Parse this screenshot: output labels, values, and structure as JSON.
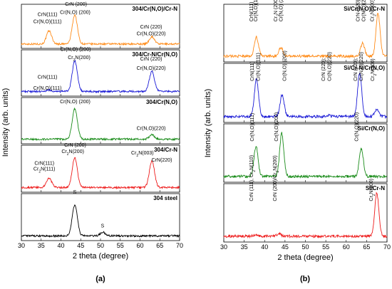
{
  "figure": {
    "captions": [
      "(a)",
      "(b)"
    ]
  },
  "chart_data": [
    {
      "type": "line",
      "xlabel": "2 theta (degree)",
      "ylabel": "Intensity (arb. units)",
      "xlim": [
        30,
        70
      ],
      "xticks": [
        30,
        35,
        40,
        45,
        50,
        55,
        60,
        65,
        70
      ],
      "panels": [
        {
          "title": "304/Cr(N,O)/Cr-N",
          "color": "#ff8c1a",
          "peaks": [
            [
              37.0,
              0.45
            ],
            [
              43.5,
              1.0
            ],
            [
              63.0,
              0.25
            ]
          ],
          "annotations": [
            {
              "text": "CrN (200)",
              "x": 43.8,
              "level": 0.97
            },
            {
              "text": "Cr(N,O) (200)",
              "x": 43.6,
              "level": 0.78
            },
            {
              "text": "CrN(111)",
              "x": 36.6,
              "level": 0.73
            },
            {
              "text": "Cr(N,O)(111)",
              "x": 36.6,
              "level": 0.57
            },
            {
              "text": "CrN (220)",
              "x": 62.8,
              "level": 0.45
            },
            {
              "text": "Cr(N,O)(220)",
              "x": 62.8,
              "level": 0.3
            }
          ]
        },
        {
          "title": "304/Cr-N/Cr(N,O)",
          "color": "#1a1ad6",
          "peaks": [
            [
              37.0,
              0.05
            ],
            [
              43.5,
              1.0
            ],
            [
              63.0,
              0.65
            ]
          ],
          "annotations": [
            {
              "text": "Cr(N,O) (200)",
              "x": 43.7,
              "level": 0.98
            },
            {
              "text": "Cr2N(200)",
              "x": 44.6,
              "level": 0.8
            },
            {
              "text": "CrN(111)",
              "x": 36.6,
              "level": 0.38
            },
            {
              "text": "Cr(N,O)(111)",
              "x": 36.6,
              "level": 0.14
            },
            {
              "text": "CrN (220)",
              "x": 62.8,
              "level": 0.77
            },
            {
              "text": "Cr(N,O)(220)",
              "x": 62.8,
              "level": 0.57
            }
          ]
        },
        {
          "title": "304/Cr(N,O)",
          "color": "#1a8c1a",
          "peaks": [
            [
              43.5,
              1.0
            ],
            [
              63.0,
              0.15
            ]
          ],
          "annotations": [
            {
              "text": "Cr(N,O) (200)",
              "x": 43.6,
              "level": 0.88
            },
            {
              "text": "Cr(N,O)(220)",
              "x": 62.8,
              "level": 0.3
            }
          ]
        },
        {
          "title": "304/Cr-N",
          "color": "#ee1c1c",
          "peaks": [
            [
              37.0,
              0.3
            ],
            [
              43.5,
              0.95
            ],
            [
              63.0,
              0.85
            ]
          ],
          "annotations": [
            {
              "text": "CrN (200)",
              "x": 43.6,
              "level": 0.97
            },
            {
              "text": "Cr2N(200)",
              "x": 43.0,
              "level": 0.83
            },
            {
              "text": "CrN(111)",
              "x": 35.8,
              "level": 0.58
            },
            {
              "text": "Cr2N(111)",
              "x": 35.8,
              "level": 0.46
            },
            {
              "text": "Cr2N(003)",
              "x": 60.6,
              "level": 0.8
            },
            {
              "text": "CrN(220)",
              "x": 65.5,
              "level": 0.65
            }
          ]
        },
        {
          "title": "304 steel",
          "color": "#000000",
          "peaks": [
            [
              43.5,
              1.0
            ],
            [
              50.6,
              0.12
            ]
          ],
          "annotations": [
            {
              "text": "S",
              "x": 43.5,
              "level": 1.0
            },
            {
              "text": "S",
              "x": 50.5,
              "level": 0.28
            }
          ]
        }
      ]
    },
    {
      "type": "line",
      "xlabel": "2 theta (degree)",
      "ylabel": "Intensity (arb. units)",
      "xlim": [
        30,
        70
      ],
      "xticks": [
        30,
        35,
        40,
        45,
        50,
        55,
        60,
        65,
        70
      ],
      "panels": [
        {
          "title": "Si/Cr(N,O)/Cr-N",
          "color": "#ff8c1a",
          "peaks": [
            [
              38.0,
              0.45
            ],
            [
              44.0,
              0.2
            ],
            [
              64.0,
              0.3
            ],
            [
              67.8,
              1.0
            ]
          ],
          "annotations": [
            {
              "text": "CrN(111)",
              "x": 37.2
            },
            {
              "text": "Cr(N,O)(111)",
              "x": 38.2
            },
            {
              "text": "Cr2N (200)",
              "x": 43.1
            },
            {
              "text": "Cr(N,O) (200)",
              "x": 44.4
            },
            {
              "text": "CrN (220)",
              "x": 63.3
            },
            {
              "text": "Cr(N,O)(220)",
              "x": 64.7
            },
            {
              "text": "Cr2N(300)",
              "x": 66.8
            }
          ]
        },
        {
          "title": "Si/Cr-N/Cr(N,O)",
          "color": "#1a1ad6",
          "peaks": [
            [
              38.0,
              0.85
            ],
            [
              44.3,
              0.5
            ],
            [
              63.3,
              1.0
            ],
            [
              67.5,
              0.15
            ],
            [
              55.5,
              0.03
            ]
          ],
          "annotations": [
            {
              "text": "CrN(111)",
              "x": 37.3
            },
            {
              "text": "Cr(N,O)(111)",
              "x": 38.8
            },
            {
              "text": "Cr(N,O) (200)",
              "x": 45.3
            },
            {
              "text": "CrN (220);",
              "x": 54.8
            },
            {
              "text": "Cr(N,O)(220)",
              "x": 56.3
            },
            {
              "text": "CrN (220);",
              "x": 62.7
            },
            {
              "text": "Cr(N,O)(220)",
              "x": 64.1
            },
            {
              "text": "Cr2N(300)",
              "x": 66.9
            }
          ]
        },
        {
          "title": "Si/Cr(N,O)",
          "color": "#1a8c1a",
          "peaks": [
            [
              37.9,
              0.7
            ],
            [
              44.2,
              1.0
            ],
            [
              63.7,
              0.65
            ]
          ],
          "annotations": [
            {
              "text": "Cr(N,O)(111)",
              "x": 37.3
            },
            {
              "text": "Cr(N,O)(200)",
              "x": 43.3
            },
            {
              "text": "Cr(N,O)(220)",
              "x": 62.9
            }
          ]
        },
        {
          "title": "Si/Cr-N",
          "color": "#ee1c1c",
          "peaks": [
            [
              37.8,
              0.03
            ],
            [
              43.5,
              0.05
            ],
            [
              67.5,
              1.0
            ]
          ],
          "annotations": [
            {
              "text": "CrN (111), Cr2N(110)",
              "x": 37.2
            },
            {
              "text": "CrN (200)/Cr2N(200)",
              "x": 42.9
            },
            {
              "text": "Cr2N(300)",
              "x": 66.5
            }
          ]
        }
      ]
    }
  ]
}
